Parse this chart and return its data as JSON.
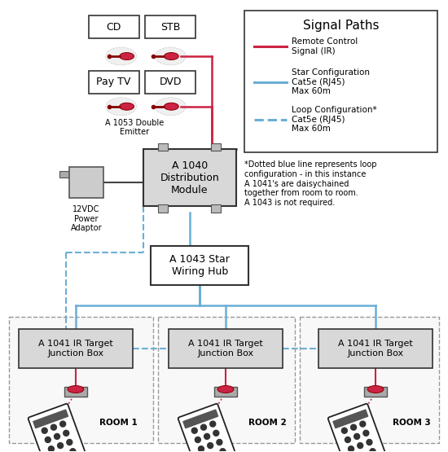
{
  "bg_color": "#ffffff",
  "red_color": "#cc2244",
  "blue_solid": "#6baed6",
  "blue_dash": "#6baed6",
  "box_fill": "#d8d8d8",
  "box_edge": "#333333",
  "legend_title": "Signal Paths",
  "footnote": "*Dotted blue line represents loop\nconfiguration - in this instance\nA 1041's are daisychained\ntogether from room to room.\nA 1043 is not required.",
  "legend_labels": [
    "Remote Control\nSignal (IR)",
    "Star Configuration\nCat5e (RJ45)\nMax 60m",
    "Loop Configuration*\nCat5e (RJ45)\nMax 60m"
  ],
  "legend_styles": [
    "solid",
    "solid",
    "dashed"
  ],
  "legend_colors": [
    "#cc2244",
    "#6baed6",
    "#6baed6"
  ]
}
